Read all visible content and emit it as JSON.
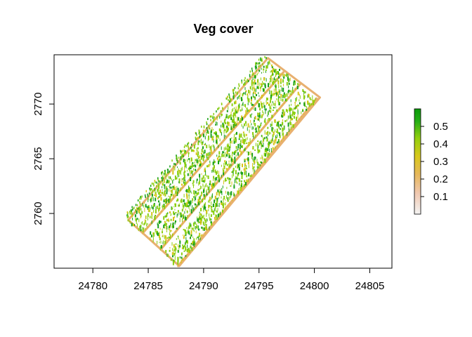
{
  "chart_data": {
    "type": "heatmap",
    "title": "Veg cover",
    "xlabel": "",
    "ylabel": "",
    "xlim": [
      24776.5,
      24807
    ],
    "ylim": [
      2755,
      2774.5
    ],
    "x_ticks": [
      24780,
      24785,
      24790,
      24795,
      24800,
      24805
    ],
    "y_ticks": [
      2760,
      2765,
      2770
    ],
    "grid": false,
    "colorbar": {
      "position": "right",
      "range": [
        0,
        0.6
      ],
      "ticks": [
        0.1,
        0.2,
        0.3,
        0.4,
        0.5
      ],
      "tick_labels": [
        "0.1",
        "0.2",
        "0.3",
        "0.4",
        "0.5"
      ],
      "colors": [
        "#f2f2f2",
        "#f0c8b0",
        "#e3b65c",
        "#d6c41e",
        "#8ccd10",
        "#16a816",
        "#0a9a0a"
      ]
    },
    "strips": [
      {
        "start": [
          24787.7,
          2755.2
        ],
        "end": [
          24800.2,
          2770.5
        ]
      },
      {
        "start": [
          24786.2,
          2756.8
        ],
        "end": [
          24798.7,
          2771.8
        ]
      },
      {
        "start": [
          24784.5,
          2758.2
        ],
        "end": [
          24797.2,
          2772.9
        ]
      }
    ],
    "field_outline": [
      [
        24783.2,
        2759.4
      ],
      [
        24795.8,
        2774.2
      ],
      [
        24800.5,
        2770.6
      ],
      [
        24787.8,
        2755.2
      ]
    ],
    "colors": {
      "border": "#e8b070",
      "veg_low": "#d8c418",
      "veg_mid": "#8ccf10",
      "veg_high": "#18a018",
      "background": "#ffffff"
    }
  }
}
